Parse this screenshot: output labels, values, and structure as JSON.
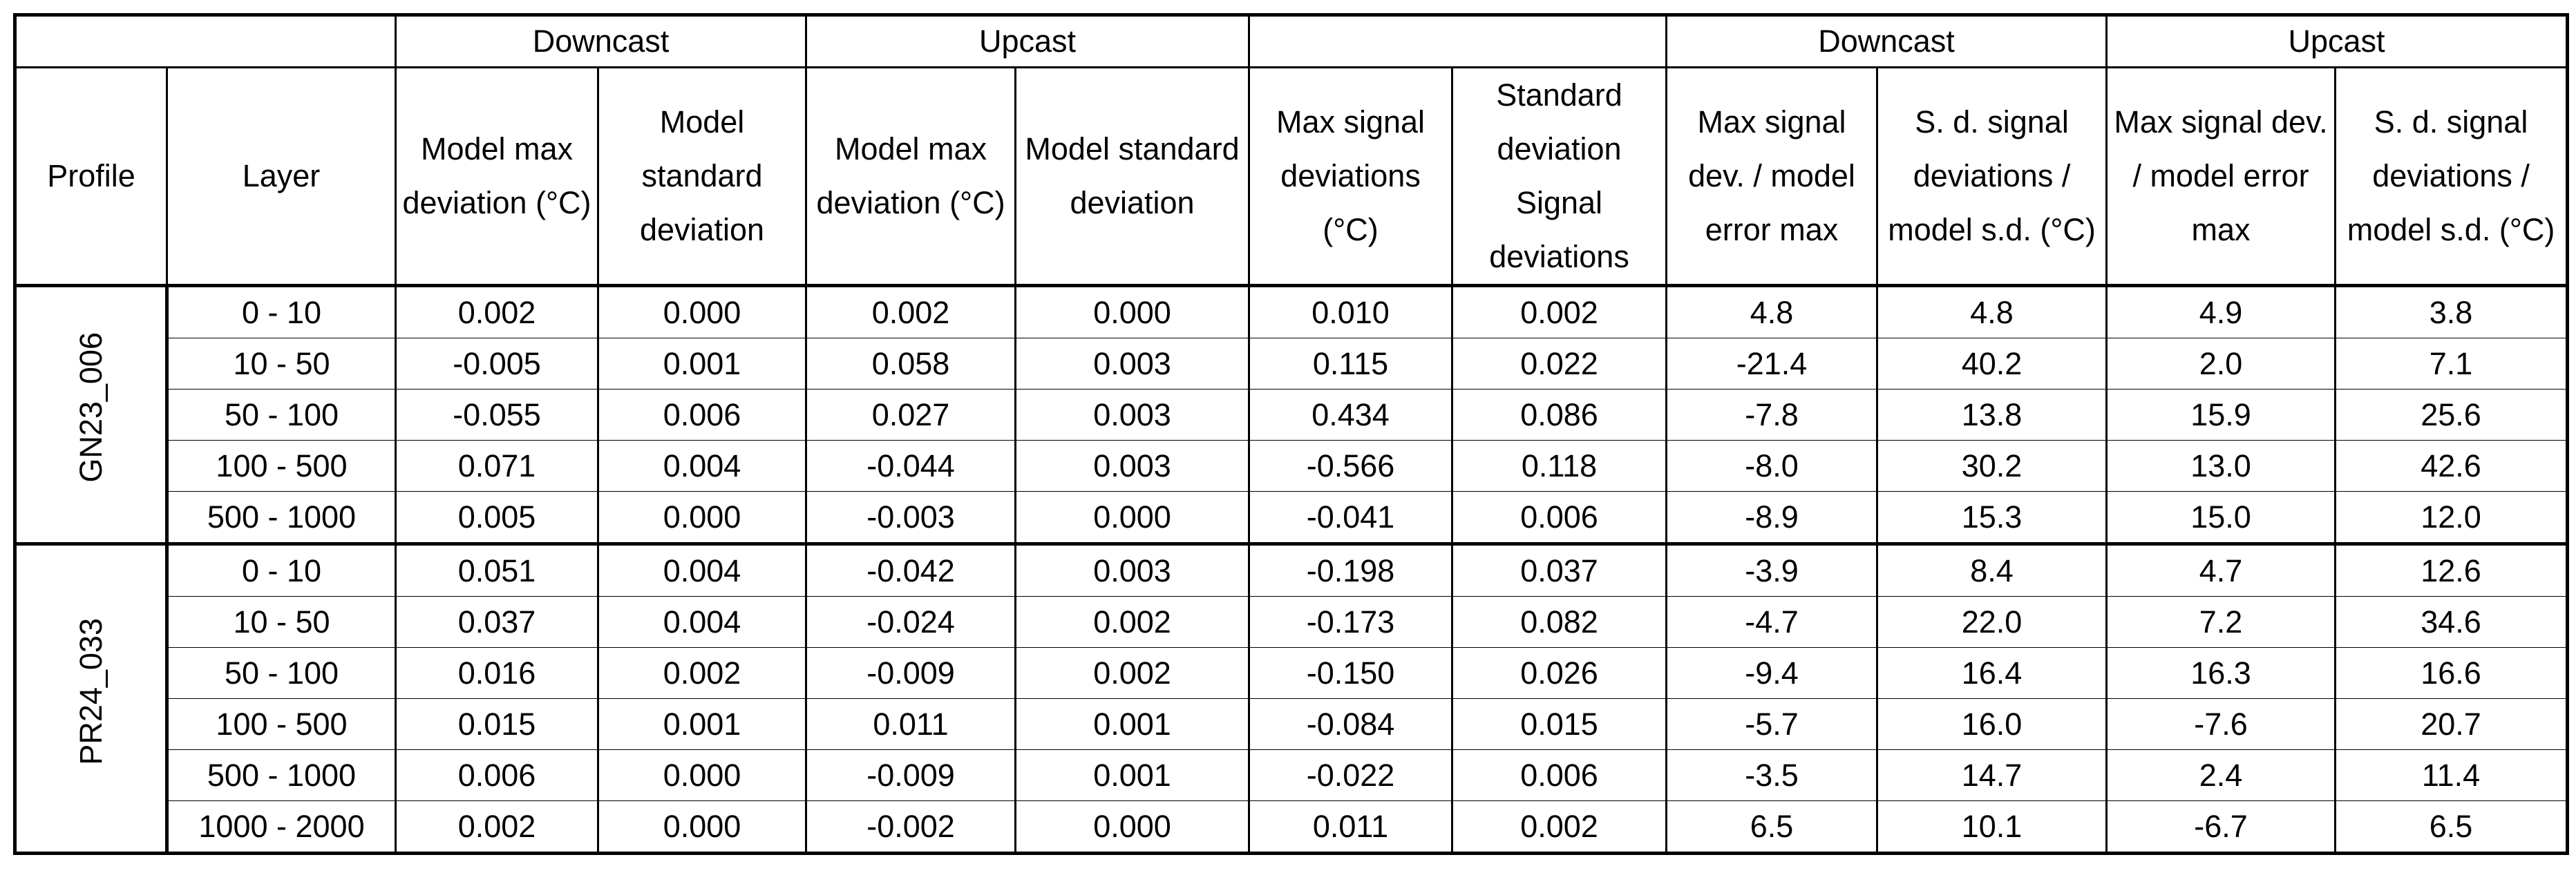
{
  "table": {
    "group_headers": [
      "Downcast",
      "Upcast",
      "Downcast",
      "Upcast"
    ],
    "column_headers": [
      "Profile",
      "Layer",
      "Model max deviation (°C)",
      "Model standard deviation",
      "Model max deviation (°C)",
      "Model standard deviation",
      "Max signal deviations (°C)",
      "Standard deviation Signal deviations",
      "Max signal dev. / model error max",
      "S. d. signal deviations / model s.d. (°C)",
      "Max signal dev. / model error max",
      "S. d. signal deviations / model s.d. (°C)"
    ],
    "profiles": [
      {
        "name": "GN23_006",
        "rows": [
          [
            "0 - 10",
            "0.002",
            "0.000",
            "0.002",
            "0.000",
            "0.010",
            "0.002",
            "4.8",
            "4.8",
            "4.9",
            "3.8"
          ],
          [
            "10 - 50",
            "-0.005",
            "0.001",
            "0.058",
            "0.003",
            "0.115",
            "0.022",
            "-21.4",
            "40.2",
            "2.0",
            "7.1"
          ],
          [
            "50 - 100",
            "-0.055",
            "0.006",
            "0.027",
            "0.003",
            "0.434",
            "0.086",
            "-7.8",
            "13.8",
            "15.9",
            "25.6"
          ],
          [
            "100 - 500",
            "0.071",
            "0.004",
            "-0.044",
            "0.003",
            "-0.566",
            "0.118",
            "-8.0",
            "30.2",
            "13.0",
            "42.6"
          ],
          [
            "500 - 1000",
            "0.005",
            "0.000",
            "-0.003",
            "0.000",
            "-0.041",
            "0.006",
            "-8.9",
            "15.3",
            "15.0",
            "12.0"
          ]
        ]
      },
      {
        "name": "PR24_033",
        "rows": [
          [
            "0 - 10",
            "0.051",
            "0.004",
            "-0.042",
            "0.003",
            "-0.198",
            "0.037",
            "-3.9",
            "8.4",
            "4.7",
            "12.6"
          ],
          [
            "10 - 50",
            "0.037",
            "0.004",
            "-0.024",
            "0.002",
            "-0.173",
            "0.082",
            "-4.7",
            "22.0",
            "7.2",
            "34.6"
          ],
          [
            "50 - 100",
            "0.016",
            "0.002",
            "-0.009",
            "0.002",
            "-0.150",
            "0.026",
            "-9.4",
            "16.4",
            "16.3",
            "16.6"
          ],
          [
            "100 - 500",
            "0.015",
            "0.001",
            "0.011",
            "0.001",
            "-0.084",
            "0.015",
            "-5.7",
            "16.0",
            "-7.6",
            "20.7"
          ],
          [
            "500 - 1000",
            "0.006",
            "0.000",
            "-0.009",
            "0.001",
            "-0.022",
            "0.006",
            "-3.5",
            "14.7",
            "2.4",
            "11.4"
          ],
          [
            "1000 - 2000",
            "0.002",
            "0.000",
            "-0.002",
            "0.000",
            "0.011",
            "0.002",
            "6.5",
            "10.1",
            "-6.7",
            "6.5"
          ]
        ]
      }
    ]
  }
}
